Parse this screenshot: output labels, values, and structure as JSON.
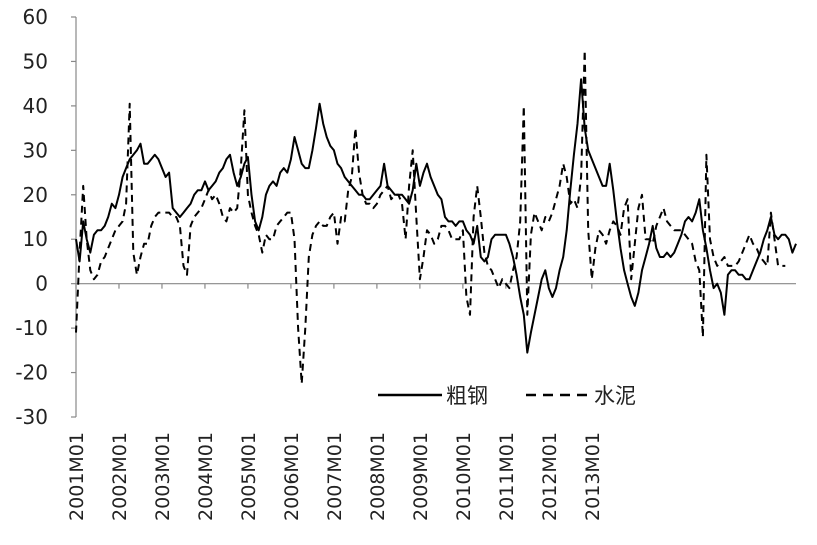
{
  "chart_data": {
    "type": "line",
    "title": "",
    "xlabel": "",
    "ylabel": "",
    "ylim": [
      -30,
      60
    ],
    "yticks": [
      60,
      50,
      40,
      30,
      20,
      10,
      0,
      -10,
      -20,
      -30
    ],
    "x_start": "2001M01",
    "xticks": [
      "2001M01",
      "2002M01",
      "2003M01",
      "2004M01",
      "2005M01",
      "2006M01",
      "2007M01",
      "2008M01",
      "2009M01",
      "2010M01",
      "2011M01",
      "2012M01",
      "2013M01"
    ],
    "legend_position": "bottom-right",
    "series": [
      {
        "name": "粗钢",
        "style": "solid",
        "color": "#000000",
        "values": [
          10,
          5,
          14,
          10,
          7,
          11,
          12,
          12,
          13,
          15,
          18,
          17,
          20,
          24,
          26,
          28,
          29,
          30,
          31.5,
          27,
          27,
          28,
          29,
          28,
          26,
          24,
          25,
          17,
          16,
          15,
          16,
          17,
          18,
          20,
          21,
          21,
          23,
          21,
          22,
          23,
          25,
          26,
          28,
          29,
          25,
          22,
          24,
          27,
          28.5,
          20,
          14,
          12,
          15,
          20,
          22,
          23,
          22,
          25,
          26,
          25,
          28,
          33,
          30,
          27,
          26,
          26,
          30,
          35,
          40.5,
          36,
          33,
          31,
          30,
          27,
          26,
          24,
          23,
          22,
          21,
          20,
          20,
          19,
          19,
          20,
          21,
          22,
          27,
          22,
          21,
          20,
          20,
          20,
          19,
          18,
          21,
          27,
          22,
          25,
          27,
          24,
          22,
          20,
          19,
          15,
          14,
          14,
          13,
          14,
          14,
          12,
          11,
          9,
          13,
          6,
          5,
          6,
          10,
          11,
          11,
          11,
          11,
          9,
          6,
          2,
          -3,
          -7,
          -15.5,
          -11,
          -7,
          -3,
          1,
          3,
          -1,
          -3,
          -1,
          3,
          6,
          12,
          21,
          29,
          36,
          46,
          35,
          30,
          28,
          26,
          24,
          22,
          22,
          27,
          21,
          14,
          8,
          3,
          0,
          -3,
          -5,
          -2,
          3,
          6,
          9,
          13,
          8,
          6,
          6,
          7,
          6,
          7,
          9,
          11,
          14,
          15,
          14,
          16,
          19,
          12,
          8,
          3,
          -1,
          0,
          -2,
          -7,
          2,
          3,
          3,
          2,
          2,
          1,
          1,
          3,
          5,
          7,
          10,
          12,
          15,
          11,
          10,
          11,
          11,
          10,
          7,
          9
        ]
      },
      {
        "name": "水泥",
        "style": "dashed",
        "color": "#000000",
        "values": [
          -11,
          7,
          22,
          10,
          3,
          1,
          2,
          5,
          6,
          8,
          10,
          12,
          13,
          14,
          18,
          40.5,
          7,
          2,
          6,
          9,
          9,
          13,
          15,
          16,
          16,
          16,
          16,
          15,
          15,
          13,
          4,
          2,
          13,
          15,
          16,
          17,
          19,
          21,
          19,
          20,
          18,
          15,
          14,
          17,
          16,
          17,
          26,
          39,
          20,
          16,
          13,
          11,
          7,
          11,
          10,
          10,
          13,
          14,
          15,
          16,
          16,
          10,
          -10,
          -22.5,
          -10,
          6,
          11,
          13,
          14,
          13,
          13,
          15,
          16,
          9,
          15,
          14,
          21,
          24,
          35,
          25,
          20,
          18,
          18,
          17,
          18,
          20,
          21,
          22,
          19,
          20,
          20,
          18,
          10,
          22,
          30,
          15,
          1,
          6,
          12,
          11,
          9,
          10,
          13,
          13,
          12,
          10,
          10,
          10,
          12,
          -3,
          -7,
          15,
          22,
          15,
          7,
          4,
          3,
          1,
          -1,
          1,
          0,
          -1,
          3,
          6,
          14,
          40,
          -7,
          11,
          16,
          14,
          12,
          15,
          14,
          16,
          19,
          22,
          27,
          24,
          18,
          19,
          17,
          24,
          52.5,
          12,
          1,
          8,
          12,
          11,
          9,
          12,
          14,
          13,
          11,
          17,
          19,
          1,
          9,
          17,
          20,
          10,
          10,
          9,
          13,
          15,
          17,
          14,
          13,
          12,
          12,
          12,
          11,
          10,
          9,
          5,
          3,
          -12,
          29,
          10,
          6,
          4,
          5,
          6,
          4,
          4,
          4,
          5,
          7,
          9,
          11,
          9,
          8,
          6,
          5,
          4,
          16,
          10,
          4,
          4,
          4
        ]
      }
    ]
  }
}
